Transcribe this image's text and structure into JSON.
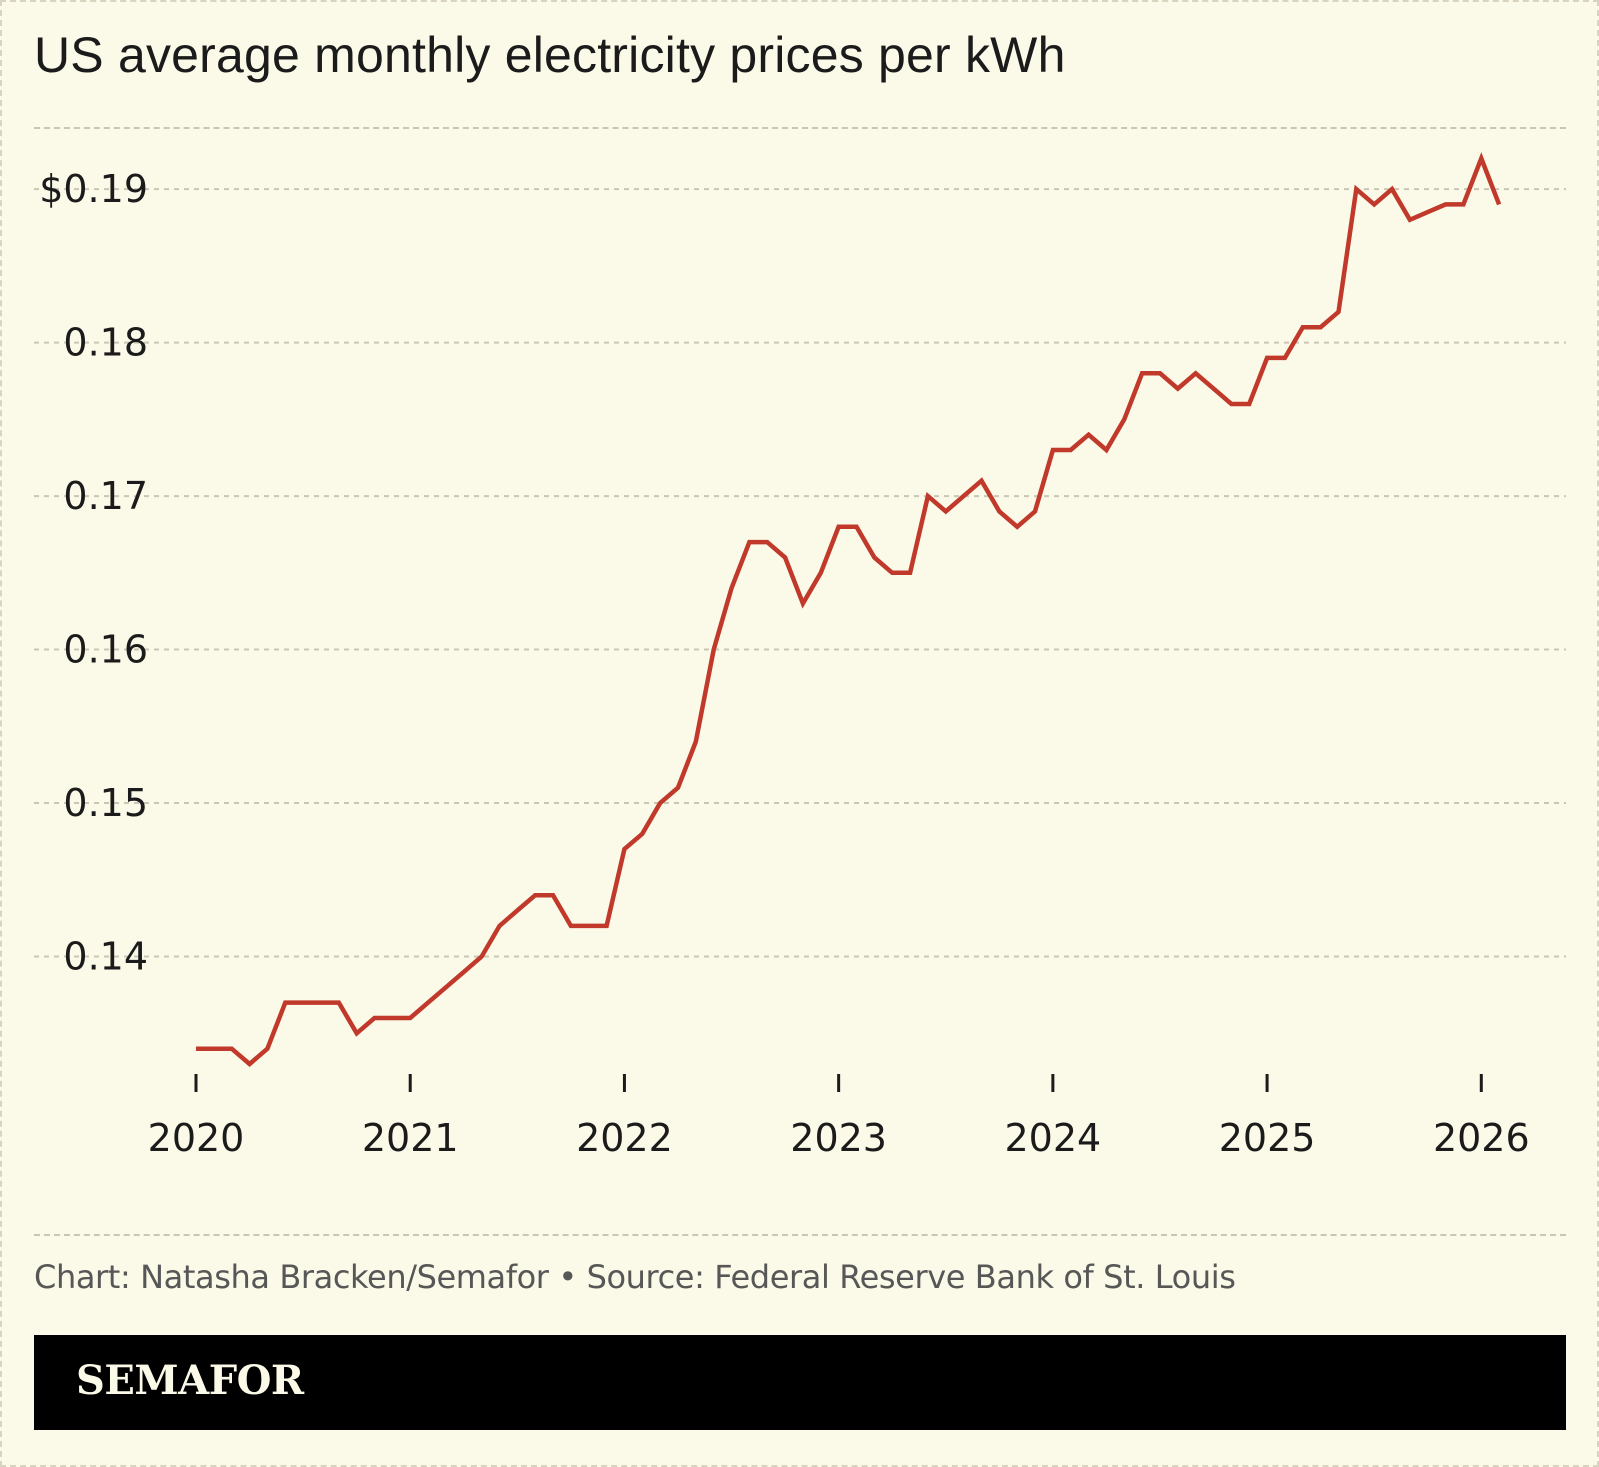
{
  "title": "US average monthly electricity prices per kWh",
  "source": "Chart: Natasha Bracken/Semafor • Source: Federal Reserve Bank of St. Louis",
  "brand": "SEMAFOR",
  "colors": {
    "background": "#fbf9e7",
    "line": "#c0392b",
    "grid": "#c9c6b6",
    "bar": "#000000"
  },
  "chart_data": {
    "type": "line",
    "title": "US average monthly electricity prices per kWh",
    "xlabel": "",
    "ylabel": "",
    "xlim": [
      "2020-01",
      "2026-03"
    ],
    "ylim": [
      0.133,
      0.1945
    ],
    "grid": true,
    "ytick_values": [
      0.14,
      0.15,
      0.16,
      0.17,
      0.18,
      0.19
    ],
    "ytick_labels": [
      "0.14",
      "0.15",
      "0.16",
      "0.17",
      "0.18",
      "$0.19"
    ],
    "xtick_values": [
      "2020-01",
      "2021-01",
      "2022-01",
      "2023-01",
      "2024-01",
      "2025-01",
      "2026-01"
    ],
    "xtick_labels": [
      "2020",
      "2021",
      "2022",
      "2023",
      "2024",
      "2025",
      "2026"
    ],
    "series": [
      {
        "x": [
          "2020-01",
          "2020-02",
          "2020-03",
          "2020-04",
          "2020-05",
          "2020-06",
          "2020-07",
          "2020-08",
          "2020-09",
          "2020-10",
          "2020-11",
          "2020-12",
          "2021-01",
          "2021-02",
          "2021-03",
          "2021-04",
          "2021-05",
          "2021-06",
          "2021-07",
          "2021-08",
          "2021-09",
          "2021-10",
          "2021-11",
          "2021-12",
          "2022-01",
          "2022-02",
          "2022-03",
          "2022-04",
          "2022-05",
          "2022-06",
          "2022-07",
          "2022-08",
          "2022-09",
          "2022-10",
          "2022-11",
          "2022-12",
          "2023-01",
          "2023-02",
          "2023-03",
          "2023-04",
          "2023-05",
          "2023-06",
          "2023-07",
          "2023-08",
          "2023-09",
          "2023-10",
          "2023-11",
          "2023-12",
          "2024-01",
          "2024-02",
          "2024-03",
          "2024-04",
          "2024-05",
          "2024-06",
          "2024-07",
          "2024-08",
          "2024-09",
          "2024-10",
          "2024-11",
          "2024-12",
          "2025-01",
          "2025-02",
          "2025-03",
          "2025-04",
          "2025-05",
          "2025-06",
          "2025-07",
          "2025-08",
          "2025-09",
          "2025-10",
          "2025-11",
          "2025-12",
          "2026-01",
          "2026-02"
        ],
        "values": [
          0.134,
          0.134,
          0.134,
          0.133,
          0.134,
          0.137,
          0.137,
          0.137,
          0.137,
          0.135,
          0.136,
          0.136,
          0.136,
          0.137,
          0.138,
          0.139,
          0.14,
          0.142,
          0.143,
          0.144,
          0.144,
          0.142,
          0.142,
          0.142,
          0.147,
          0.148,
          0.15,
          0.151,
          0.154,
          0.16,
          0.164,
          0.167,
          0.167,
          0.166,
          0.163,
          0.165,
          0.168,
          0.168,
          0.166,
          0.165,
          0.165,
          0.17,
          0.169,
          0.17,
          0.171,
          0.169,
          0.168,
          0.169,
          0.173,
          0.173,
          0.174,
          0.173,
          0.175,
          0.178,
          0.178,
          0.177,
          0.178,
          0.177,
          0.176,
          0.176,
          0.179,
          0.179,
          0.181,
          0.181,
          0.182,
          0.19,
          0.189,
          0.19,
          0.188,
          0.1885,
          0.189,
          0.189,
          0.192,
          0.189
        ]
      }
    ]
  }
}
